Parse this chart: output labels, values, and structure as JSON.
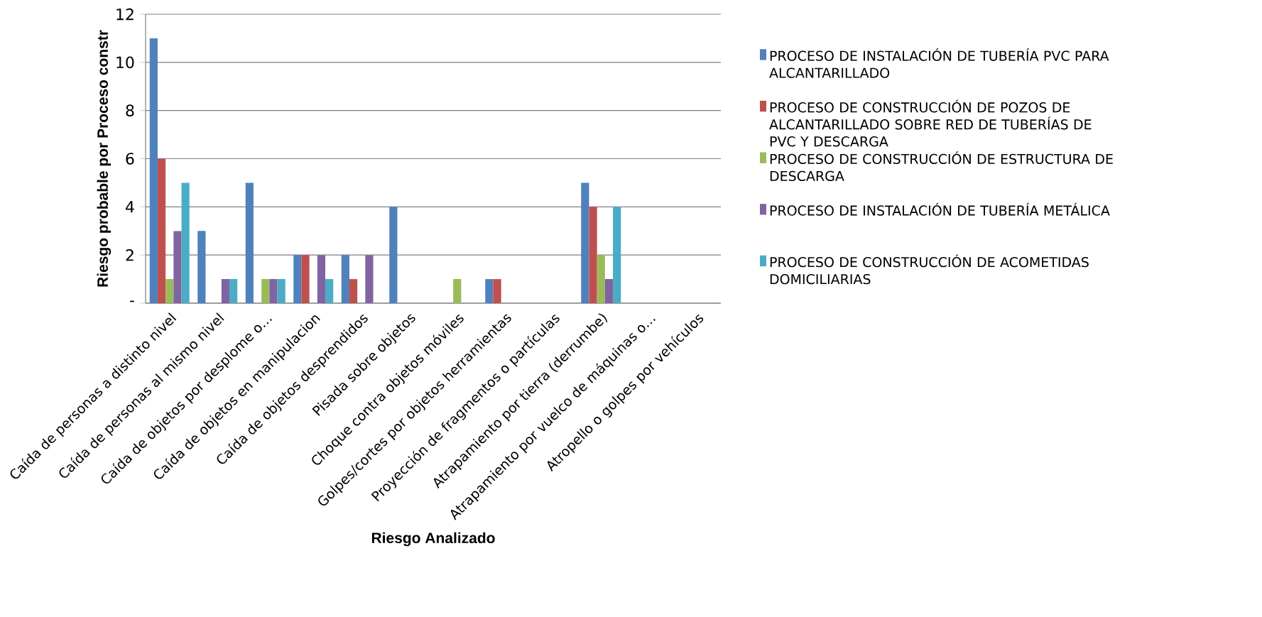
{
  "chart_data": {
    "type": "bar",
    "ylabel": "Riesgo probable por Proceso constr",
    "xlabel": "Riesgo Analizado",
    "categories": [
      "Caída de personas a distinto nivel",
      "Caída de personas al mismo nivel",
      "Caída de objetos por desplome o…",
      "Caída de objetos en manipulacion",
      "Caída de objetos desprendidos",
      "Pisada sobre objetos",
      "Choque contra objetos móviles",
      "Golpes/cortes por objetos herramientas",
      "Proyección de fragmentos o partículas",
      "Atrapamiento por tierra (derrumbe)",
      "Atrapamiento por vuelco de máquinas o…",
      "Atropello o golpes por vehículos"
    ],
    "series": [
      {
        "name": "PROCESO DE INSTALACIÓN DE TUBERÍA PVC PARA ALCANTARILLADO",
        "color": "#4f81bd",
        "values": [
          11,
          3,
          5,
          2,
          2,
          4,
          0,
          1,
          0,
          5,
          0,
          0
        ]
      },
      {
        "name": "PROCESO DE CONSTRUCCIÓN DE POZOS DE ALCANTARILLADO SOBRE RED DE TUBERÍAS DE PVC Y DESCARGA",
        "color": "#c0504d",
        "values": [
          6,
          0,
          0,
          2,
          1,
          0,
          0,
          1,
          0,
          4,
          0,
          0
        ]
      },
      {
        "name": "PROCESO DE CONSTRUCCIÓN DE ESTRUCTURA DE DESCARGA",
        "color": "#9bbb59",
        "values": [
          1,
          0,
          1,
          0,
          0,
          0,
          1,
          0,
          0,
          2,
          0,
          0
        ]
      },
      {
        "name": "PROCESO DE INSTALACIÓN DE TUBERÍA METÁLICA",
        "color": "#8064a2",
        "values": [
          3,
          1,
          1,
          2,
          2,
          0,
          0,
          0,
          0,
          1,
          0,
          0
        ]
      },
      {
        "name": "PROCESO DE CONSTRUCCIÓN DE ACOMETIDAS DOMICILIARIAS",
        "color": "#4bacc6",
        "values": [
          5,
          1,
          1,
          1,
          0,
          0,
          0,
          0,
          0,
          4,
          0,
          0
        ]
      }
    ],
    "ylim": [
      0,
      12
    ],
    "yticks": [
      {
        "value": 0,
        "label": "-"
      },
      2,
      4,
      6,
      8,
      10,
      12
    ],
    "grid": "y",
    "legend": "right"
  }
}
